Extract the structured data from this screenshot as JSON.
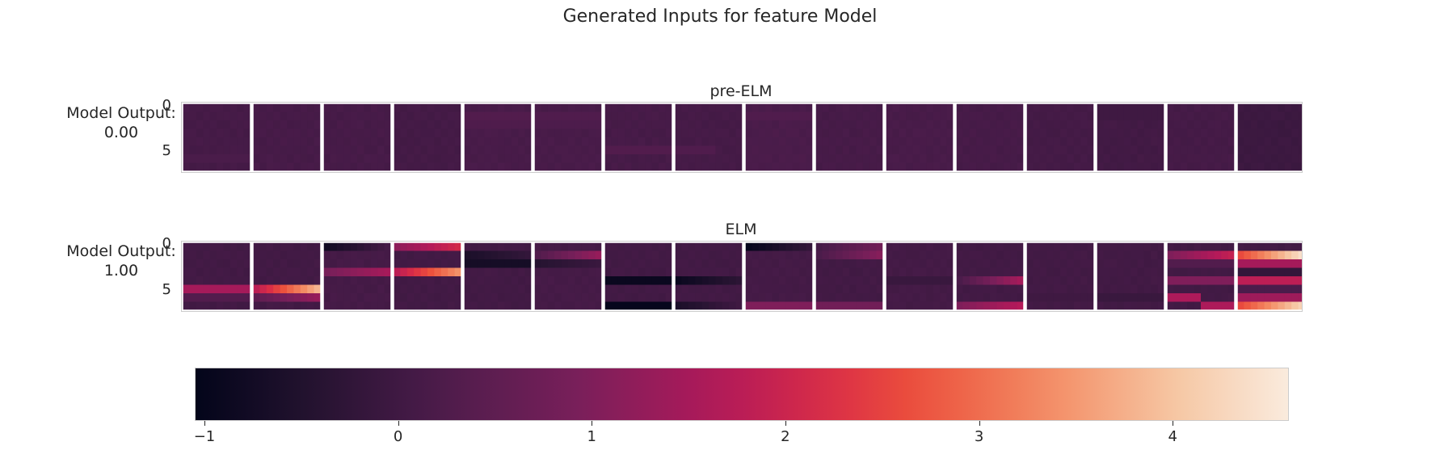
{
  "chart_data": {
    "type": "heatmap",
    "title": "Generated Inputs for feature Model",
    "colormap": "rocket",
    "colorbar": {
      "vmin": -1.05,
      "vmax": 4.6,
      "ticks": [
        "−1",
        "0",
        "1",
        "2",
        "3",
        "4"
      ],
      "tick_values": [
        -1,
        0,
        1,
        2,
        3,
        4
      ]
    },
    "rows": [
      {
        "label_line1": "Model Output:",
        "label_line2": "0.00",
        "title": "pre-ELM",
        "yticks": [
          "0",
          "5"
        ],
        "features": 16,
        "timesteps": 8,
        "base": [
          0.1,
          0.12,
          0.12,
          0.08,
          0.15,
          0.15,
          0.12,
          0.1,
          0.18,
          0.12,
          0.15,
          0.12,
          0.08,
          0.05,
          0.1,
          -0.05
        ],
        "patches": [
          {
            "f": 4,
            "r": 1,
            "c0": 0,
            "c1": 10,
            "v": 0.3
          },
          {
            "f": 4,
            "r": 2,
            "c0": 0,
            "c1": 10,
            "v": 0.25
          },
          {
            "f": 5,
            "r": 1,
            "c0": 0,
            "c1": 10,
            "v": 0.28
          },
          {
            "f": 5,
            "r": 2,
            "c0": 0,
            "c1": 10,
            "v": 0.22
          },
          {
            "f": 6,
            "r": 5,
            "c0": 0,
            "c1": 10,
            "v": 0.3
          },
          {
            "f": 7,
            "r": 5,
            "c0": 0,
            "c1": 6,
            "v": 0.28
          },
          {
            "f": 8,
            "r": 1,
            "c0": 0,
            "c1": 10,
            "v": 0.28
          },
          {
            "f": 0,
            "r": 6,
            "c0": 0,
            "c1": 10,
            "v": 0.18
          },
          {
            "f": 13,
            "r": 0,
            "c0": 0,
            "c1": 10,
            "v": 0.0
          },
          {
            "f": 13,
            "r": 1,
            "c0": 0,
            "c1": 10,
            "v": 0.0
          }
        ]
      },
      {
        "label_line1": "Model Output:",
        "label_line2": "1.00",
        "title": "ELM",
        "yticks": [
          "0",
          "5"
        ],
        "features": 16,
        "timesteps": 8,
        "base": [
          0.05,
          0.05,
          0.1,
          0.05,
          0.05,
          0.1,
          0.05,
          0.05,
          0.08,
          0.05,
          0.08,
          0.05,
          0.05,
          0.05,
          0.05,
          0.05
        ],
        "patches": [
          {
            "f": 0,
            "r": 5,
            "c0": 0,
            "c1": 10,
            "v": 1.5
          },
          {
            "f": 0,
            "r": 6,
            "c0": 0,
            "c1": 10,
            "v": 0.3
          },
          {
            "f": 1,
            "r": 5,
            "c0": 0,
            "c1": 10,
            "v": 1.8,
            "grad": 2.0
          },
          {
            "f": 1,
            "r": 6,
            "c0": 0,
            "c1": 10,
            "v": 0.5,
            "grad": 0.8
          },
          {
            "f": 2,
            "r": 0,
            "c0": 0,
            "c1": 10,
            "v": -0.8,
            "grad": 0.9
          },
          {
            "f": 2,
            "r": 3,
            "c0": 0,
            "c1": 10,
            "v": 0.9,
            "grad": 0.6
          },
          {
            "f": 3,
            "r": 0,
            "c0": 0,
            "c1": 10,
            "v": 1.2,
            "grad": 0.9
          },
          {
            "f": 3,
            "r": 3,
            "c0": 0,
            "c1": 10,
            "v": 1.8,
            "grad": 1.6
          },
          {
            "f": 4,
            "r": 1,
            "c0": 0,
            "c1": 10,
            "v": -0.6,
            "grad": 0.4
          },
          {
            "f": 4,
            "r": 2,
            "c0": 0,
            "c1": 10,
            "v": -0.7
          },
          {
            "f": 5,
            "r": 1,
            "c0": 0,
            "c1": 10,
            "v": 0.3,
            "grad": 1.0
          },
          {
            "f": 5,
            "r": 2,
            "c0": 0,
            "c1": 10,
            "v": -0.4,
            "grad": 0.3
          },
          {
            "f": 6,
            "r": 4,
            "c0": 0,
            "c1": 10,
            "v": -0.9
          },
          {
            "f": 6,
            "r": 7,
            "c0": 0,
            "c1": 10,
            "v": -1.0
          },
          {
            "f": 7,
            "r": 4,
            "c0": 0,
            "c1": 10,
            "v": -0.9,
            "grad": 0.6
          },
          {
            "f": 7,
            "r": 7,
            "c0": 0,
            "c1": 10,
            "v": -0.6,
            "grad": 0.6
          },
          {
            "f": 8,
            "r": 0,
            "c0": 0,
            "c1": 10,
            "v": -1.0,
            "grad": 0.8
          },
          {
            "f": 8,
            "r": 7,
            "c0": 0,
            "c1": 10,
            "v": 1.0
          },
          {
            "f": 9,
            "r": 0,
            "c0": 0,
            "c1": 10,
            "v": 0.1,
            "grad": 0.7
          },
          {
            "f": 9,
            "r": 1,
            "c0": 0,
            "c1": 10,
            "v": 0.2,
            "grad": 0.9
          },
          {
            "f": 9,
            "r": 7,
            "c0": 0,
            "c1": 10,
            "v": 0.8
          },
          {
            "f": 10,
            "r": 4,
            "c0": 0,
            "c1": 10,
            "v": -0.1
          },
          {
            "f": 11,
            "r": 4,
            "c0": 0,
            "c1": 10,
            "v": 0.2,
            "grad": 1.3
          },
          {
            "f": 11,
            "r": 7,
            "c0": 0,
            "c1": 10,
            "v": 1.0,
            "grad": 0.7
          },
          {
            "f": 12,
            "r": 6,
            "c0": 0,
            "c1": 10,
            "v": 0.0
          },
          {
            "f": 13,
            "r": 6,
            "c0": 0,
            "c1": 10,
            "v": -0.1
          },
          {
            "f": 14,
            "r": 1,
            "c0": 0,
            "c1": 10,
            "v": 1.0,
            "grad": 0.9
          },
          {
            "f": 14,
            "r": 2,
            "c0": 0,
            "c1": 10,
            "v": 0.3
          },
          {
            "f": 14,
            "r": 4,
            "c0": 0,
            "c1": 10,
            "v": 1.0
          },
          {
            "f": 14,
            "r": 6,
            "c0": 0,
            "c1": 5,
            "v": 1.6
          },
          {
            "f": 14,
            "r": 7,
            "c0": 5,
            "c1": 10,
            "v": 1.6
          },
          {
            "f": 15,
            "r": 1,
            "c0": 0,
            "c1": 10,
            "v": 2.6,
            "grad": 1.8
          },
          {
            "f": 15,
            "r": 2,
            "c0": 0,
            "c1": 10,
            "v": 1.5
          },
          {
            "f": 15,
            "r": 3,
            "c0": 0,
            "c1": 10,
            "v": -0.2
          },
          {
            "f": 15,
            "r": 4,
            "c0": 0,
            "c1": 10,
            "v": 1.8
          },
          {
            "f": 15,
            "r": 5,
            "c0": 0,
            "c1": 10,
            "v": 0.2
          },
          {
            "f": 15,
            "r": 6,
            "c0": 0,
            "c1": 10,
            "v": 1.4
          },
          {
            "f": 15,
            "r": 7,
            "c0": 0,
            "c1": 10,
            "v": 2.6,
            "grad": 1.6
          }
        ]
      }
    ]
  }
}
